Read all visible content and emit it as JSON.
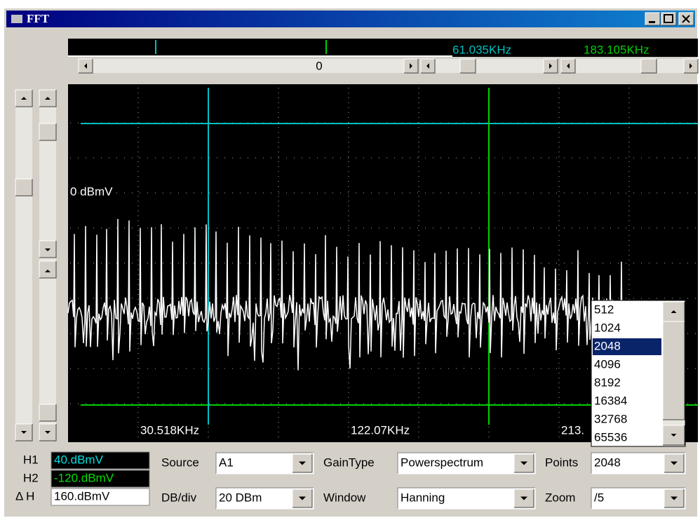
{
  "window": {
    "title": "FFT"
  },
  "cursors": {
    "cursor1": "61.035KHz",
    "cursor2": "183.105KHz"
  },
  "scrollbar_value": "0",
  "plot": {
    "level_label": "0 dBmV",
    "x_labels": [
      "30.518KHz",
      "122.07KHz",
      "213."
    ]
  },
  "readouts": [
    {
      "label": "H1",
      "value": "40.dBmV"
    },
    {
      "label": "H2",
      "value": "-120.dBmV"
    },
    {
      "label": "Δ H",
      "value": "160.dBmV"
    }
  ],
  "controls": [
    {
      "label": "Source",
      "value": "A1"
    },
    {
      "label": "GainType",
      "value": "Powerspectrum"
    },
    {
      "label": "Points",
      "value": "2048"
    },
    {
      "label": "DB/div",
      "value": "20 DBm"
    },
    {
      "label": "Window",
      "value": "Hanning"
    },
    {
      "label": "Zoom",
      "value": "/5"
    }
  ],
  "points_list": {
    "items": [
      "512",
      "1024",
      "2048",
      "4096",
      "8192",
      "16384",
      "32768",
      "65536"
    ],
    "selected_index": 2
  }
}
